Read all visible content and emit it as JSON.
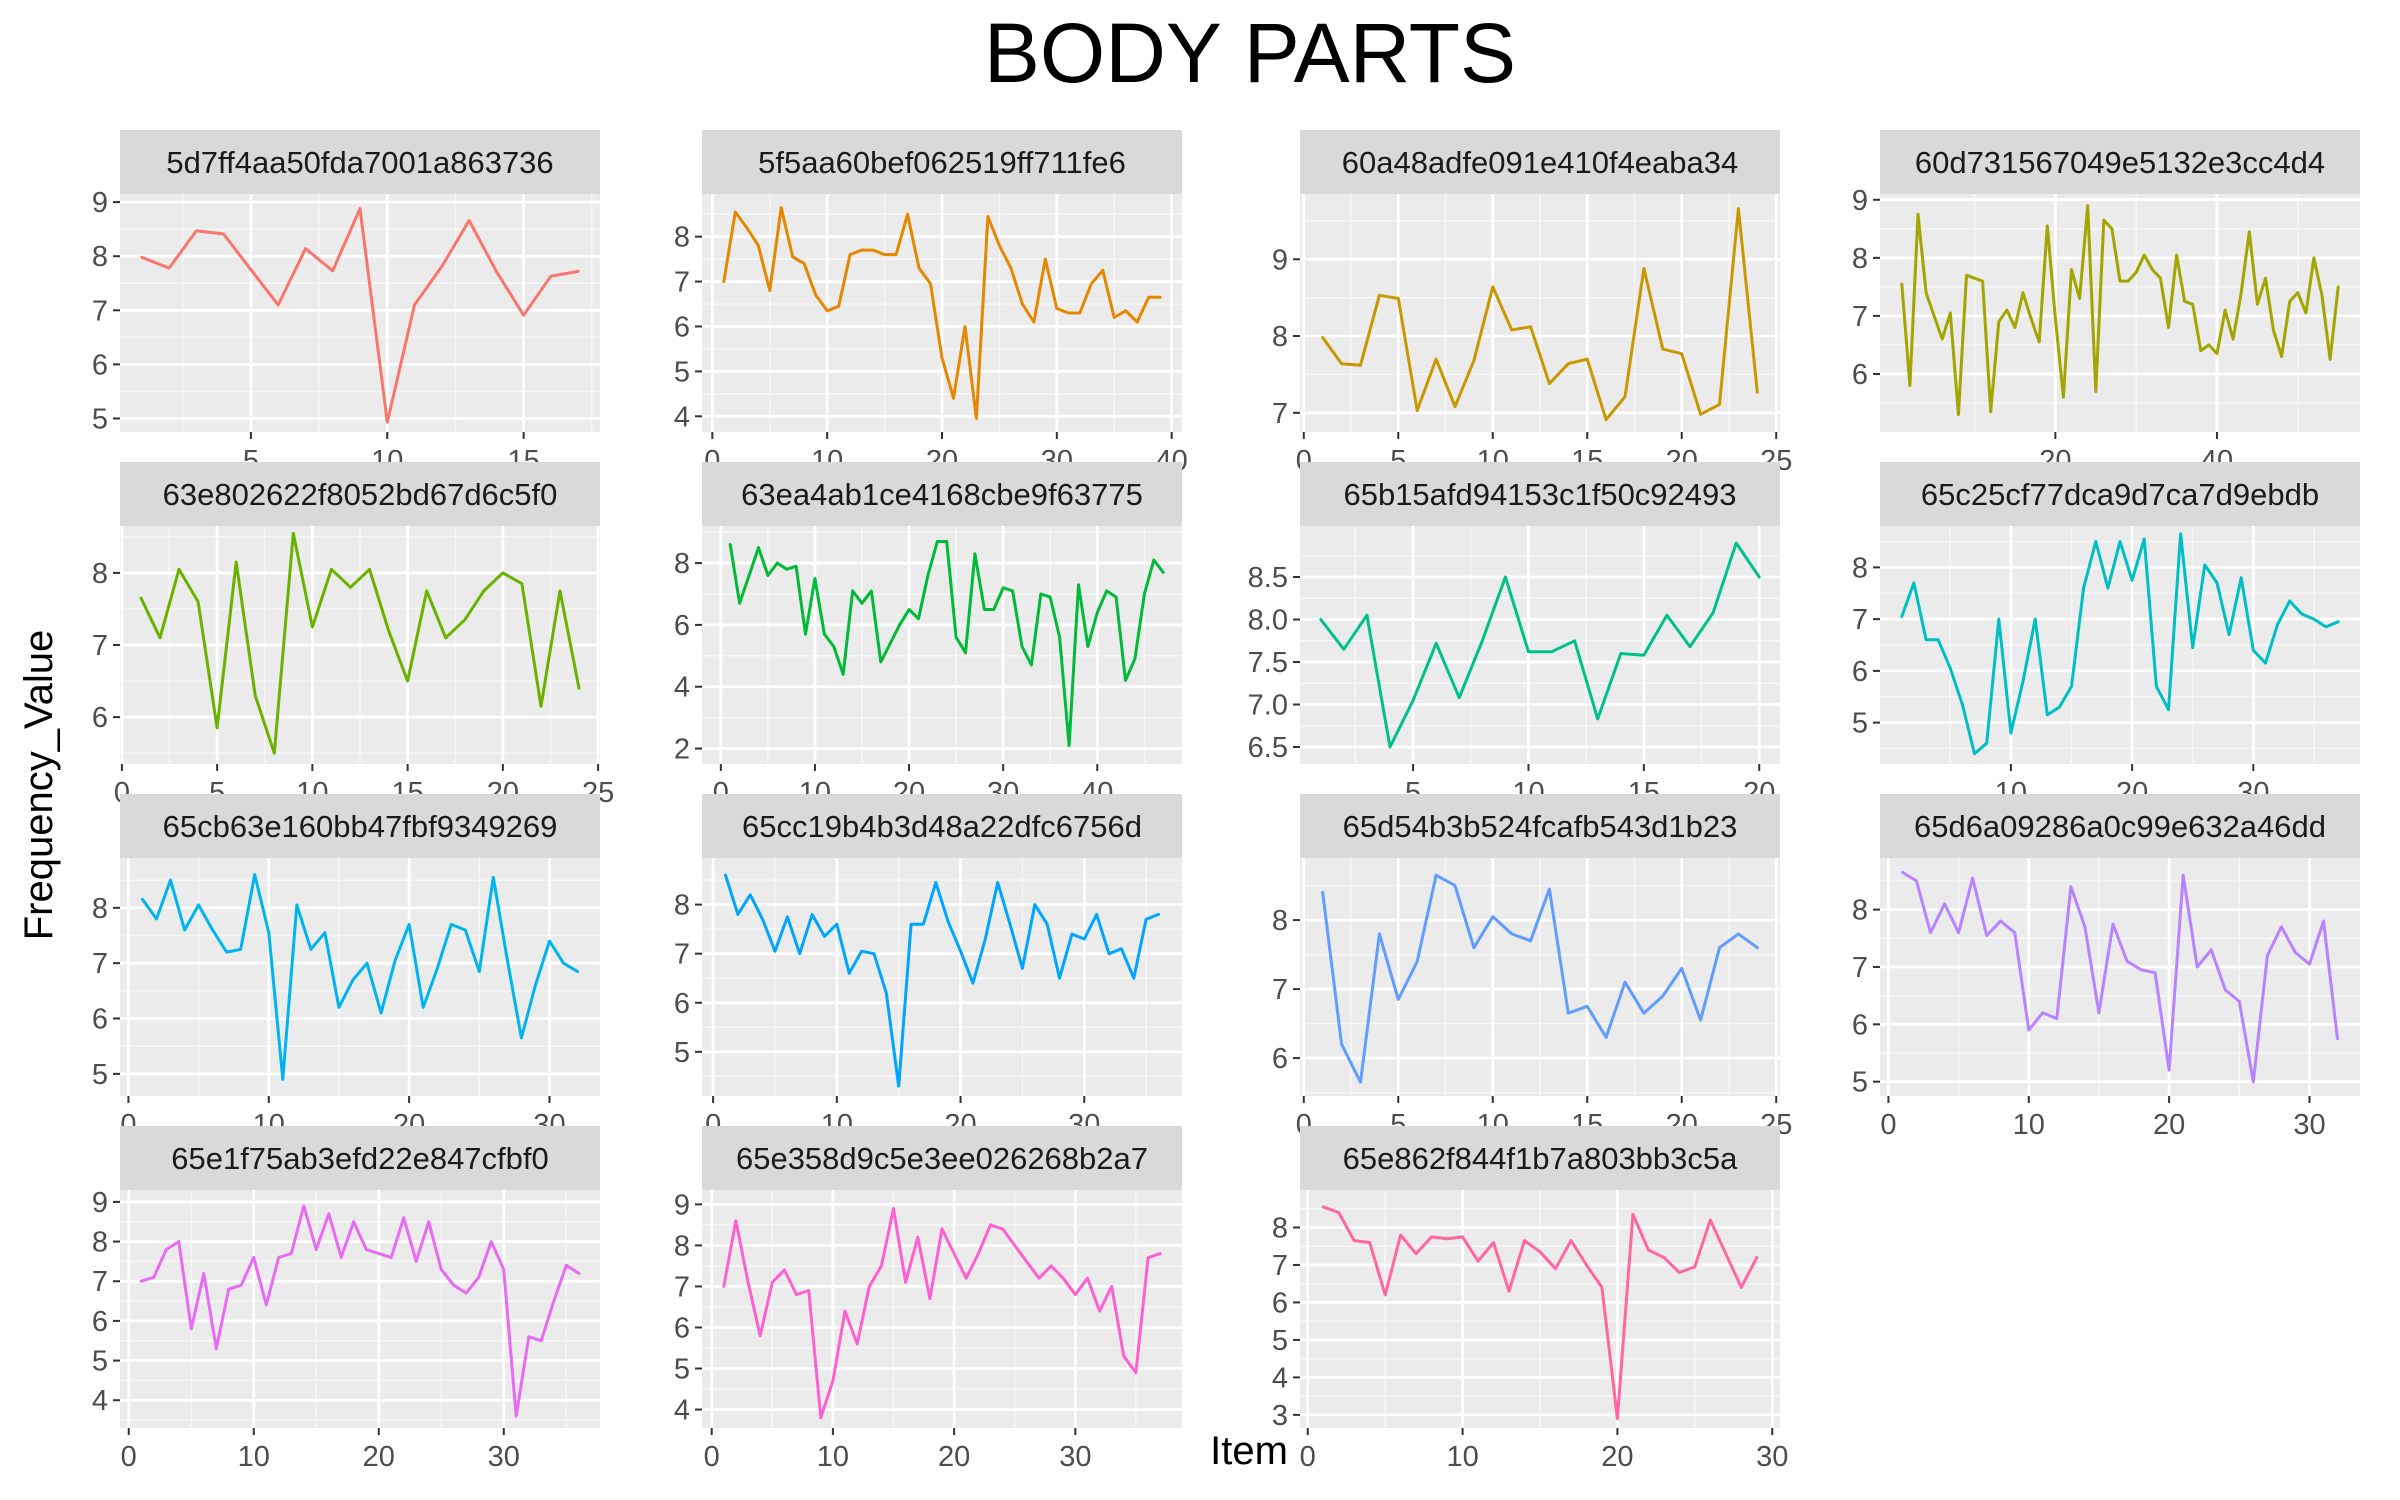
{
  "chart_data": {
    "type": "line",
    "title": "BODY PARTS",
    "xlabel": "Item",
    "ylabel": "Frequency_Value",
    "grid": true,
    "legend": "none",
    "panels": [
      {
        "name": "5d7ff4aa50fda7001a863736",
        "color": "#F8766D",
        "xlim": [
          0.2,
          17.8
        ],
        "ylim": [
          4.75,
          9.15
        ],
        "xticks": [
          5,
          10,
          15
        ],
        "yticks": [
          5,
          6,
          7,
          8,
          9
        ],
        "values": [
          7.98,
          7.78,
          8.47,
          8.41,
          7.75,
          7.1,
          8.14,
          7.73,
          8.88,
          4.93,
          7.1,
          7.81,
          8.66,
          7.72,
          6.91,
          7.63,
          7.72
        ]
      },
      {
        "name": "5f5aa60bef062519ff711fe6",
        "color": "#E58700",
        "xlim": [
          -0.9,
          40.9
        ],
        "ylim": [
          3.65,
          8.95
        ],
        "xticks": [
          0,
          10,
          20,
          30,
          40
        ],
        "yticks": [
          4,
          5,
          6,
          7,
          8
        ],
        "values": [
          7.0,
          8.55,
          8.2,
          7.8,
          6.8,
          8.65,
          7.55,
          7.4,
          6.7,
          6.35,
          6.45,
          7.6,
          7.7,
          7.7,
          7.6,
          7.6,
          8.5,
          7.3,
          6.95,
          5.3,
          4.4,
          6.0,
          3.95,
          8.45,
          7.8,
          7.3,
          6.5,
          6.1,
          7.5,
          6.4,
          6.3,
          6.3,
          6.95,
          7.25,
          6.2,
          6.35,
          6.1,
          6.65,
          6.65
        ]
      },
      {
        "name": "60a48adfe091e410f4eaba34",
        "color": "#C99800",
        "xlim": [
          -0.2,
          25.2
        ],
        "ylim": [
          6.75,
          9.85
        ],
        "xticks": [
          0,
          5,
          10,
          15,
          20,
          25
        ],
        "yticks": [
          7,
          8,
          9
        ],
        "values": [
          7.98,
          7.64,
          7.62,
          8.53,
          8.49,
          7.03,
          7.7,
          7.08,
          7.68,
          8.64,
          8.08,
          8.12,
          7.38,
          7.64,
          7.7,
          6.91,
          7.21,
          8.88,
          7.83,
          7.77,
          6.98,
          7.11,
          9.66,
          7.27
        ]
      },
      {
        "name": "60d731567049e5132e3cc4d4",
        "color": "#A3A500",
        "xlim": [
          -1.7,
          57.7
        ],
        "ylim": [
          5.0,
          9.1
        ],
        "xticks": [
          20,
          40
        ],
        "yticks": [
          6,
          7,
          8,
          9
        ],
        "values": [
          7.55,
          5.8,
          8.75,
          7.4,
          7.0,
          6.6,
          7.05,
          5.3,
          7.7,
          7.65,
          7.6,
          5.35,
          6.9,
          7.1,
          6.8,
          7.4,
          6.95,
          6.55,
          8.55,
          6.95,
          5.6,
          7.8,
          7.3,
          8.9,
          5.7,
          8.65,
          8.5,
          7.6,
          7.6,
          7.75,
          8.05,
          7.8,
          7.65,
          6.8,
          8.05,
          7.25,
          7.2,
          6.4,
          6.5,
          6.35,
          7.1,
          6.6,
          7.4,
          8.45,
          7.2,
          7.65,
          6.75,
          6.3,
          7.25,
          7.4,
          7.05,
          8.0,
          7.35,
          6.25,
          7.5
        ]
      },
      {
        "name": "63e802622f8052bd67d6c5f0",
        "color": "#6BB100",
        "xlim": [
          -0.1,
          25.1
        ],
        "ylim": [
          5.35,
          8.65
        ],
        "xticks": [
          0,
          5,
          10,
          15,
          20,
          25
        ],
        "yticks": [
          6,
          7,
          8
        ],
        "values": [
          7.65,
          7.1,
          8.05,
          7.6,
          5.85,
          8.15,
          6.3,
          5.5,
          8.55,
          7.25,
          8.05,
          7.8,
          8.05,
          7.2,
          6.5,
          7.75,
          7.1,
          7.35,
          7.75,
          8.0,
          7.85,
          6.15,
          7.75,
          6.4
        ]
      },
      {
        "name": "63ea4ab1ce4168cbe9f63775",
        "color": "#00BA38",
        "xlim": [
          -2.0,
          49.0
        ],
        "ylim": [
          1.5,
          9.2
        ],
        "xticks": [
          0,
          10,
          20,
          30,
          40
        ],
        "yticks": [
          2,
          4,
          6,
          8
        ],
        "values": [
          8.6,
          6.7,
          7.6,
          8.5,
          7.6,
          8.0,
          7.8,
          7.9,
          5.7,
          7.5,
          5.7,
          5.3,
          4.4,
          7.1,
          6.7,
          7.1,
          4.8,
          5.4,
          6.0,
          6.5,
          6.2,
          7.6,
          8.7,
          8.7,
          5.6,
          5.1,
          8.3,
          6.5,
          6.5,
          7.2,
          7.1,
          5.3,
          4.7,
          7.0,
          6.9,
          5.6,
          2.1,
          7.3,
          5.3,
          6.4,
          7.1,
          6.9,
          4.2,
          4.9,
          7.0,
          8.1,
          7.7
        ]
      },
      {
        "name": "65b15afd94153c1f50c92493",
        "color": "#00C08B",
        "xlim": [
          0.1,
          20.9
        ],
        "ylim": [
          6.3,
          9.1
        ],
        "xticks": [
          5,
          10,
          15,
          20
        ],
        "yticks": [
          6.5,
          7.0,
          7.5,
          8.0,
          8.5
        ],
        "ytick_labels": [
          "6.5",
          "7.0",
          "7.5",
          "8.0",
          "8.5"
        ],
        "values": [
          8.0,
          7.65,
          8.05,
          6.5,
          7.05,
          7.72,
          7.08,
          7.75,
          8.5,
          7.62,
          7.62,
          7.75,
          6.83,
          7.6,
          7.58,
          8.05,
          7.68,
          8.08,
          8.9,
          8.5
        ]
      },
      {
        "name": "65c25cf77dca9d7ca7d9ebdb",
        "color": "#00BFC4",
        "xlim": [
          -0.8,
          38.8
        ],
        "ylim": [
          4.2,
          8.8
        ],
        "xticks": [
          10,
          20,
          30
        ],
        "yticks": [
          5,
          6,
          7,
          8
        ],
        "values": [
          7.05,
          7.7,
          6.6,
          6.6,
          6.05,
          5.35,
          4.4,
          4.6,
          7.0,
          4.8,
          5.8,
          7.0,
          5.15,
          5.3,
          5.7,
          7.6,
          8.5,
          7.6,
          8.5,
          7.75,
          8.55,
          5.7,
          5.25,
          8.65,
          6.45,
          8.05,
          7.7,
          6.7,
          7.8,
          6.4,
          6.15,
          6.9,
          7.35,
          7.1,
          7.0,
          6.85,
          6.95
        ]
      },
      {
        "name": "65cb63e160bb47fbf9349269",
        "color": "#00B4EF",
        "xlim": [
          -0.6,
          33.6
        ],
        "ylim": [
          4.6,
          8.9
        ],
        "xticks": [
          0,
          10,
          20,
          30
        ],
        "yticks": [
          5,
          6,
          7,
          8
        ],
        "values": [
          8.15,
          7.8,
          8.5,
          7.6,
          8.05,
          7.6,
          7.2,
          7.25,
          8.6,
          7.55,
          4.9,
          8.05,
          7.25,
          7.55,
          6.2,
          6.7,
          7.0,
          6.1,
          7.05,
          7.7,
          6.2,
          6.9,
          7.7,
          7.6,
          6.85,
          8.55,
          7.05,
          5.65,
          6.6,
          7.4,
          7.0,
          6.85
        ]
      },
      {
        "name": "65cc19b4b3d48a22dfc6756d",
        "color": "#00A5FF",
        "xlim": [
          -0.9,
          37.9
        ],
        "ylim": [
          4.1,
          8.95
        ],
        "xticks": [
          0,
          10,
          20,
          30
        ],
        "yticks": [
          5,
          6,
          7,
          8
        ],
        "values": [
          8.6,
          7.8,
          8.2,
          7.7,
          7.05,
          7.75,
          7.0,
          7.8,
          7.35,
          7.6,
          6.6,
          7.05,
          7.0,
          6.2,
          4.3,
          7.6,
          7.6,
          8.45,
          7.65,
          7.05,
          6.4,
          7.3,
          8.45,
          7.6,
          6.7,
          8.0,
          7.6,
          6.5,
          7.4,
          7.3,
          7.8,
          7.0,
          7.1,
          6.5,
          7.7,
          7.8
        ]
      },
      {
        "name": "65d54b3b524fcafb543d1b23",
        "color": "#619CFF",
        "xlim": [
          -0.2,
          25.2
        ],
        "ylim": [
          5.45,
          8.9
        ],
        "xticks": [
          0,
          5,
          10,
          15,
          20,
          25
        ],
        "yticks": [
          6,
          7,
          8
        ],
        "values": [
          8.4,
          6.2,
          5.65,
          7.8,
          6.85,
          7.4,
          8.65,
          8.5,
          7.6,
          8.05,
          7.8,
          7.7,
          8.45,
          6.65,
          6.75,
          6.3,
          7.1,
          6.65,
          6.9,
          7.3,
          6.55,
          7.6,
          7.8,
          7.6
        ]
      },
      {
        "name": "65d6a09286a0c99e632a46dd",
        "color": "#B983FF",
        "xlim": [
          -0.6,
          33.6
        ],
        "ylim": [
          4.75,
          8.9
        ],
        "xticks": [
          0,
          10,
          20,
          30
        ],
        "yticks": [
          5,
          6,
          7,
          8
        ],
        "values": [
          8.65,
          8.5,
          7.6,
          8.1,
          7.6,
          8.55,
          7.55,
          7.8,
          7.6,
          5.9,
          6.2,
          6.1,
          8.4,
          7.7,
          6.2,
          7.75,
          7.1,
          6.95,
          6.9,
          5.2,
          8.6,
          7.0,
          7.3,
          6.6,
          6.4,
          5.0,
          7.2,
          7.7,
          7.25,
          7.05,
          7.8,
          5.75
        ]
      },
      {
        "name": "65e1f75ab3efd22e847cfbf0",
        "color": "#E76BF3",
        "xlim": [
          -0.7,
          37.7
        ],
        "ylim": [
          3.3,
          9.3
        ],
        "xticks": [
          0,
          10,
          20,
          30
        ],
        "yticks": [
          4,
          5,
          6,
          7,
          8,
          9
        ],
        "values": [
          7.0,
          7.1,
          7.8,
          8.0,
          5.8,
          7.2,
          5.3,
          6.8,
          6.9,
          7.6,
          6.4,
          7.6,
          7.7,
          8.9,
          7.8,
          8.7,
          7.6,
          8.5,
          7.8,
          7.7,
          7.6,
          8.6,
          7.5,
          8.5,
          7.3,
          6.9,
          6.7,
          7.1,
          8.0,
          7.3,
          3.6,
          5.6,
          5.5,
          6.5,
          7.4,
          7.2
        ]
      },
      {
        "name": "65e358d9c5e3ee026268b2a7",
        "color": "#FD61D1",
        "xlim": [
          -0.8,
          38.8
        ],
        "ylim": [
          3.55,
          9.35
        ],
        "xticks": [
          0,
          10,
          20,
          30
        ],
        "yticks": [
          4,
          5,
          6,
          7,
          8,
          9
        ],
        "values": [
          7.0,
          8.6,
          7.1,
          5.8,
          7.1,
          7.4,
          6.8,
          6.9,
          3.8,
          4.7,
          6.4,
          5.6,
          7.0,
          7.5,
          8.9,
          7.1,
          8.2,
          6.7,
          8.4,
          7.8,
          7.2,
          7.8,
          8.5,
          8.4,
          8.0,
          7.6,
          7.2,
          7.5,
          7.2,
          6.8,
          7.2,
          6.4,
          7.0,
          5.3,
          4.9,
          7.7,
          7.8
        ]
      },
      {
        "name": "65e862f844f1b7a803bb3c5a",
        "color": "#FF67A4",
        "xlim": [
          -0.5,
          30.5
        ],
        "ylim": [
          2.65,
          9.0
        ],
        "xticks": [
          0,
          10,
          20,
          30
        ],
        "yticks": [
          3,
          4,
          5,
          6,
          7,
          8
        ],
        "values": [
          8.55,
          8.4,
          7.65,
          7.6,
          6.2,
          7.8,
          7.3,
          7.75,
          7.7,
          7.75,
          7.1,
          7.6,
          6.3,
          7.65,
          7.35,
          6.9,
          7.65,
          7.0,
          6.4,
          2.9,
          8.35,
          7.4,
          7.2,
          6.8,
          6.95,
          8.2,
          7.3,
          6.4,
          7.2
        ]
      }
    ]
  }
}
